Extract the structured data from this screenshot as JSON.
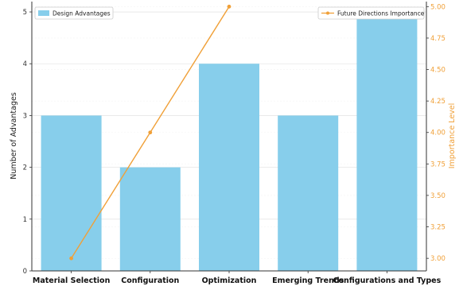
{
  "chart_data": {
    "type": "bar+line",
    "categories": [
      "Material Selection",
      "Configuration",
      "Optimization",
      "Emerging Trends",
      "Configurations and Types"
    ],
    "bar_series": {
      "name": "Design Advantages",
      "values": [
        3,
        2,
        4,
        3,
        5
      ],
      "color": "#87ceeb"
    },
    "line_series": {
      "name": "Future Directions Importance",
      "x_categories": [
        "Material Selection",
        "Configuration",
        "Optimization"
      ],
      "values": [
        3.0,
        4.0,
        5.0
      ],
      "color": "#f0a038"
    },
    "ylabel_left": "Number of Advantages",
    "ylabel_right": "Importance Level",
    "ylim_left": [
      0,
      5.2
    ],
    "yticks_left": [
      "0",
      "1",
      "2",
      "3",
      "4",
      "5"
    ],
    "ylim_right": [
      2.9,
      5.04
    ],
    "yticks_right": [
      "3.00",
      "3.25",
      "3.50",
      "3.75",
      "4.00",
      "4.25",
      "4.50",
      "4.75",
      "5.00"
    ],
    "grid": true,
    "legend_left_placement": "top-left",
    "legend_right_placement": "top-right"
  }
}
